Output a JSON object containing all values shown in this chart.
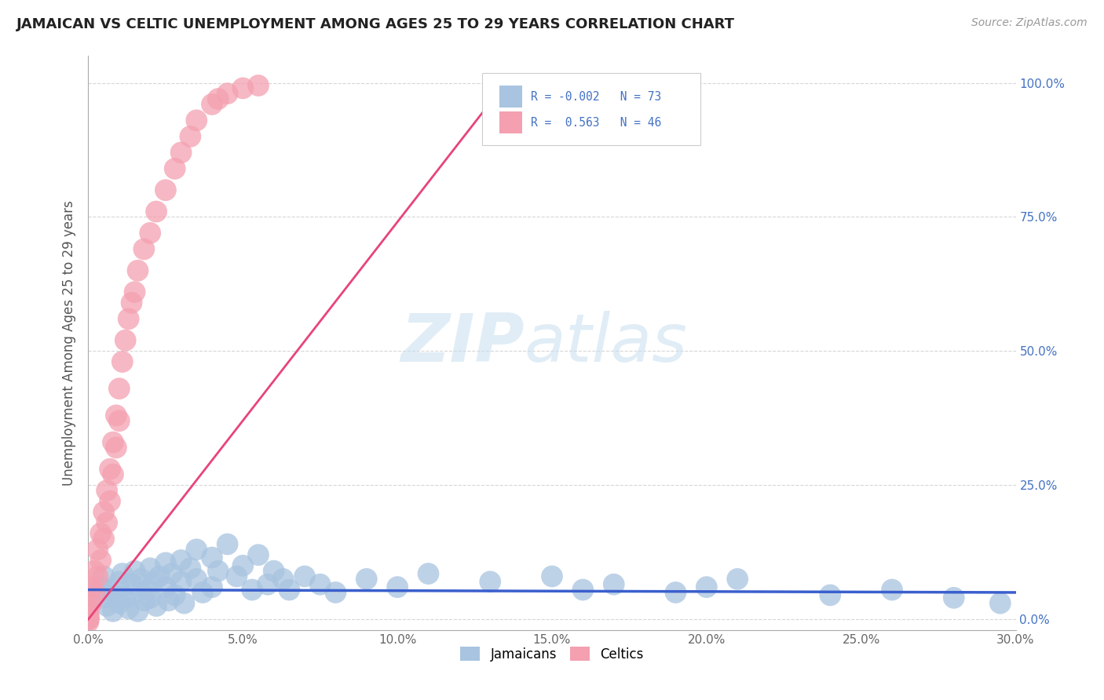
{
  "title": "JAMAICAN VS CELTIC UNEMPLOYMENT AMONG AGES 25 TO 29 YEARS CORRELATION CHART",
  "source_text": "Source: ZipAtlas.com",
  "ylabel": "Unemployment Among Ages 25 to 29 years",
  "xlim": [
    0.0,
    0.3
  ],
  "ylim": [
    -0.02,
    1.05
  ],
  "xticks": [
    0.0,
    0.05,
    0.1,
    0.15,
    0.2,
    0.25,
    0.3
  ],
  "xtick_labels": [
    "0.0%",
    "5.0%",
    "10.0%",
    "15.0%",
    "20.0%",
    "25.0%",
    "30.0%"
  ],
  "yticks": [
    0.0,
    0.25,
    0.5,
    0.75,
    1.0
  ],
  "ytick_labels": [
    "0.0%",
    "25.0%",
    "50.0%",
    "75.0%",
    "100.0%"
  ],
  "jamaicans_color": "#a8c4e0",
  "celtics_color": "#f4a0b0",
  "jamaicans_line_color": "#3a5fcd",
  "celtics_line_color": "#e8447a",
  "r_jamaicans": -0.002,
  "n_jamaicans": 73,
  "r_celtics": 0.563,
  "n_celtics": 46,
  "jamaicans_x": [
    0.0,
    0.0,
    0.0,
    0.0,
    0.0,
    0.0,
    0.0,
    0.0,
    0.004,
    0.005,
    0.005,
    0.006,
    0.007,
    0.008,
    0.009,
    0.01,
    0.01,
    0.011,
    0.012,
    0.013,
    0.014,
    0.015,
    0.015,
    0.016,
    0.017,
    0.018,
    0.019,
    0.02,
    0.02,
    0.021,
    0.022,
    0.023,
    0.025,
    0.025,
    0.026,
    0.027,
    0.028,
    0.03,
    0.03,
    0.031,
    0.033,
    0.035,
    0.035,
    0.037,
    0.04,
    0.04,
    0.042,
    0.045,
    0.048,
    0.05,
    0.053,
    0.055,
    0.058,
    0.06,
    0.063,
    0.065,
    0.07,
    0.075,
    0.08,
    0.09,
    0.1,
    0.11,
    0.13,
    0.15,
    0.16,
    0.17,
    0.19,
    0.2,
    0.21,
    0.24,
    0.26,
    0.28,
    0.295
  ],
  "jamaicans_y": [
    0.05,
    0.035,
    0.02,
    0.01,
    0.005,
    0.003,
    0.001,
    0.0,
    0.06,
    0.08,
    0.04,
    0.025,
    0.055,
    0.015,
    0.045,
    0.07,
    0.03,
    0.085,
    0.04,
    0.02,
    0.065,
    0.09,
    0.05,
    0.015,
    0.075,
    0.035,
    0.055,
    0.095,
    0.04,
    0.07,
    0.025,
    0.08,
    0.105,
    0.06,
    0.035,
    0.085,
    0.045,
    0.11,
    0.07,
    0.03,
    0.095,
    0.13,
    0.075,
    0.05,
    0.115,
    0.06,
    0.09,
    0.14,
    0.08,
    0.1,
    0.055,
    0.12,
    0.065,
    0.09,
    0.075,
    0.055,
    0.08,
    0.065,
    0.05,
    0.075,
    0.06,
    0.085,
    0.07,
    0.08,
    0.055,
    0.065,
    0.05,
    0.06,
    0.075,
    0.045,
    0.055,
    0.04,
    0.03
  ],
  "celtics_x": [
    0.0,
    0.0,
    0.0,
    0.0,
    0.0,
    0.0,
    0.0,
    0.001,
    0.001,
    0.002,
    0.002,
    0.003,
    0.003,
    0.004,
    0.004,
    0.005,
    0.005,
    0.006,
    0.006,
    0.007,
    0.007,
    0.008,
    0.008,
    0.009,
    0.009,
    0.01,
    0.01,
    0.011,
    0.012,
    0.013,
    0.014,
    0.015,
    0.016,
    0.018,
    0.02,
    0.022,
    0.025,
    0.028,
    0.03,
    0.033,
    0.035,
    0.04,
    0.042,
    0.045,
    0.05,
    0.055
  ],
  "celtics_y": [
    0.02,
    0.01,
    0.005,
    0.003,
    0.001,
    0.0,
    -0.005,
    0.06,
    0.03,
    0.09,
    0.05,
    0.13,
    0.08,
    0.16,
    0.11,
    0.2,
    0.15,
    0.24,
    0.18,
    0.28,
    0.22,
    0.33,
    0.27,
    0.38,
    0.32,
    0.43,
    0.37,
    0.48,
    0.52,
    0.56,
    0.59,
    0.61,
    0.65,
    0.69,
    0.72,
    0.76,
    0.8,
    0.84,
    0.87,
    0.9,
    0.93,
    0.96,
    0.97,
    0.98,
    0.99,
    0.995
  ],
  "celtics_line_x": [
    0.0,
    0.135
  ],
  "celtics_line_y": [
    0.0,
    1.0
  ],
  "jamaicans_line_x": [
    0.0,
    0.3
  ],
  "jamaicans_line_y": [
    0.055,
    0.05
  ]
}
